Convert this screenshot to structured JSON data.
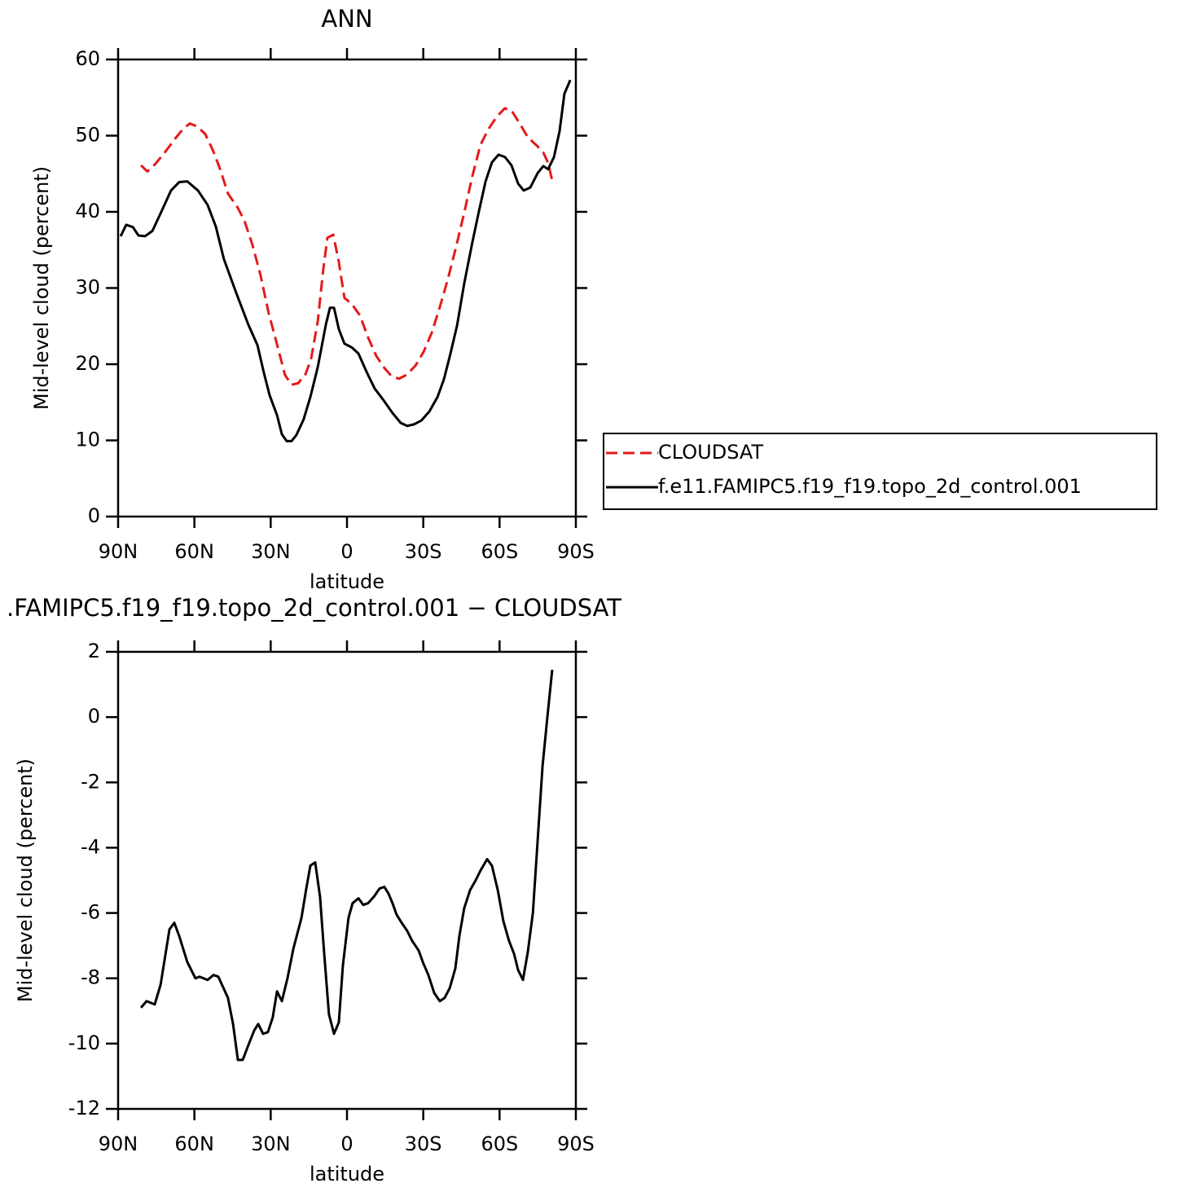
{
  "chart_data": [
    {
      "type": "line",
      "title": "ANN",
      "xlabel": "latitude",
      "ylabel": "Mid-level cloud (percent)",
      "xlim": [
        90,
        -90
      ],
      "xticks": [
        {
          "value": 90,
          "label": "90N"
        },
        {
          "value": 60,
          "label": "60N"
        },
        {
          "value": 30,
          "label": "30N"
        },
        0,
        {
          "value": -30,
          "label": "30S"
        },
        {
          "value": -60,
          "label": "60S"
        },
        {
          "value": -90,
          "label": "90S"
        }
      ],
      "ylim": [
        0,
        60
      ],
      "yticks": [
        0,
        10,
        20,
        30,
        40,
        50,
        60
      ],
      "series": [
        {
          "name": "CLOUDSAT",
          "color": "#e41a1c",
          "dash": true,
          "x": [
            81,
            78.5,
            75.6,
            71.4,
            67.6,
            64.4,
            61.8,
            58.9,
            55.7,
            52.5,
            50,
            46.8,
            42.9,
            40.4,
            37.2,
            34,
            30.8,
            27.5,
            24.4,
            21.8,
            19.2,
            16.3,
            14.1,
            11.5,
            9.3,
            7.7,
            5.4,
            3.2,
            1,
            -1.9,
            -5.1,
            -8.3,
            -11.5,
            -14.7,
            -17.6,
            -20.5,
            -23.4,
            -26.9,
            -30.1,
            -33.3,
            -36.5,
            -39.7,
            -42.9,
            -46.1,
            -49.3,
            -52.5,
            -55.7,
            -58.9,
            -62.1,
            -64.7,
            -67.9,
            -71.1,
            -74.3,
            -77.2,
            -79.1,
            -80.7
          ],
          "values": [
            46.1,
            45.3,
            46.2,
            47.9,
            49.6,
            50.9,
            51.6,
            51.2,
            50.2,
            47.9,
            45.7,
            42.4,
            40.5,
            38.9,
            35.7,
            31.7,
            26.7,
            22.6,
            18.6,
            17.3,
            17.5,
            18.7,
            20.7,
            25.6,
            32.5,
            36.6,
            37,
            33.4,
            28.7,
            27.9,
            26.4,
            23.5,
            21.1,
            19.5,
            18.4,
            18.1,
            18.6,
            19.8,
            21.6,
            24.1,
            27.5,
            31.2,
            35.4,
            39.9,
            44.7,
            48.8,
            50.9,
            52.5,
            53.6,
            53.3,
            51.6,
            49.8,
            48.8,
            47.8,
            46.4,
            44.1
          ]
        },
        {
          "name": "f.e11.FAMIPC5.f19_f19.topo_2d_control.001",
          "color": "#000000",
          "dash": false,
          "x": [
            89,
            86.8,
            84.2,
            82,
            79.4,
            76.5,
            73.3,
            69.2,
            66,
            62.8,
            58.6,
            54.8,
            51.6,
            48.4,
            43.6,
            38.8,
            35.2,
            32.7,
            30.4,
            27.5,
            25.6,
            23.7,
            21.8,
            19.9,
            17,
            14.4,
            11.5,
            8.3,
            6.7,
            5.1,
            3.2,
            1,
            -1.9,
            -4.5,
            -7.7,
            -10.9,
            -14.1,
            -17.9,
            -21.1,
            -23.7,
            -26.3,
            -29.2,
            -32.4,
            -35.6,
            -38.1,
            -40.7,
            -43.3,
            -46.1,
            -49.3,
            -51.9,
            -54.5,
            -57,
            -59.6,
            -62.1,
            -64.7,
            -67.3,
            -69.5,
            -72.1,
            -75,
            -77.2,
            -79.1,
            -81.4,
            -83.6,
            -85.5,
            -87.8
          ],
          "values": [
            36.8,
            38.3,
            38,
            36.9,
            36.8,
            37.5,
            39.8,
            42.8,
            43.9,
            44,
            42.8,
            40.9,
            38.1,
            33.8,
            29.4,
            25.2,
            22.5,
            18.9,
            15.9,
            13.3,
            10.8,
            9.9,
            9.9,
            10.7,
            12.8,
            15.7,
            19.6,
            25.2,
            27.4,
            27.4,
            24.6,
            22.7,
            22.2,
            21.4,
            19,
            16.8,
            15.4,
            13.6,
            12.3,
            11.9,
            12.1,
            12.6,
            13.8,
            15.7,
            18,
            21.4,
            25.1,
            30.6,
            36,
            40.1,
            44,
            46.5,
            47.5,
            47.2,
            46.1,
            43.7,
            42.8,
            43.2,
            45.1,
            46,
            45.6,
            47.2,
            50.6,
            55.5,
            57.3
          ]
        }
      ]
    },
    {
      "type": "line",
      "title": ".FAMIPC5.f19_f19.topo_2d_control.001 − CLOUDSAT",
      "xlabel": "latitude",
      "ylabel": "Mid-level cloud (percent)",
      "xlim": [
        90,
        -90
      ],
      "xticks": [
        {
          "value": 90,
          "label": "90N"
        },
        {
          "value": 60,
          "label": "60N"
        },
        {
          "value": 30,
          "label": "30N"
        },
        0,
        {
          "value": -30,
          "label": "30S"
        },
        {
          "value": -60,
          "label": "60S"
        },
        {
          "value": -90,
          "label": "90S"
        }
      ],
      "ylim": [
        -12,
        2
      ],
      "yticks": [
        -12,
        -10,
        -8,
        -6,
        -4,
        -2,
        0,
        2
      ],
      "series": [
        {
          "color": "#000000",
          "dash": false,
          "x": [
            81,
            78.8,
            75.6,
            73.3,
            69.8,
            67.9,
            66,
            62.8,
            59.6,
            58,
            54.8,
            52.5,
            50.6,
            46.8,
            44.8,
            42.9,
            41,
            38.8,
            36.5,
            34.9,
            33,
            31.1,
            29.2,
            27.5,
            25.6,
            23.4,
            21.1,
            17.9,
            16,
            14.4,
            12.5,
            10.6,
            9,
            7.1,
            5.1,
            3.2,
            1.6,
            -0.6,
            -2.2,
            -4.5,
            -6.4,
            -8.3,
            -10.6,
            -12.8,
            -14.7,
            -16.3,
            -17.9,
            -19.5,
            -21.5,
            -23.7,
            -25.6,
            -28.2,
            -29.8,
            -32,
            -34.3,
            -36.5,
            -38.4,
            -40.4,
            -42.6,
            -44.2,
            -46.1,
            -48.4,
            -50.6,
            -52.5,
            -55.1,
            -57,
            -59.3,
            -61.5,
            -63.7,
            -65.7,
            -67.3,
            -69.2,
            -71.1,
            -73.1,
            -75,
            -76.9,
            -78.8,
            -80.7
          ],
          "values": [
            -8.9,
            -8.7,
            -8.8,
            -8.2,
            -6.5,
            -6.3,
            -6.7,
            -7.5,
            -8,
            -7.95,
            -8.05,
            -7.9,
            -7.95,
            -8.6,
            -9.4,
            -10.5,
            -10.5,
            -10.05,
            -9.6,
            -9.4,
            -9.7,
            -9.65,
            -9.2,
            -8.4,
            -8.7,
            -8,
            -7.1,
            -6.15,
            -5.25,
            -4.55,
            -4.45,
            -5.5,
            -7.2,
            -9.1,
            -9.7,
            -9.35,
            -7.6,
            -6.15,
            -5.7,
            -5.55,
            -5.75,
            -5.7,
            -5.5,
            -5.25,
            -5.2,
            -5.4,
            -5.7,
            -6.05,
            -6.3,
            -6.55,
            -6.85,
            -7.15,
            -7.5,
            -7.9,
            -8.45,
            -8.7,
            -8.6,
            -8.3,
            -7.7,
            -6.7,
            -5.85,
            -5.3,
            -5,
            -4.7,
            -4.35,
            -4.55,
            -5.3,
            -6.25,
            -6.85,
            -7.25,
            -7.75,
            -8.05,
            -7.2,
            -6,
            -3.75,
            -1.5,
            0,
            1.45
          ]
        }
      ]
    }
  ]
}
